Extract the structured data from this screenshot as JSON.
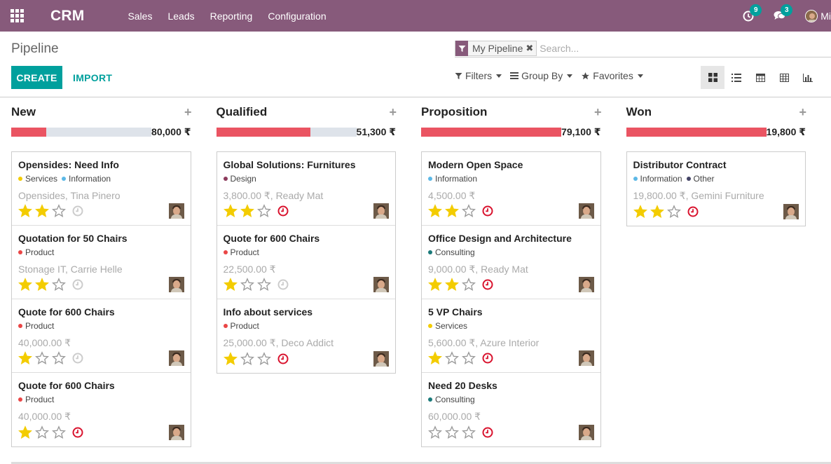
{
  "navbar": {
    "brand": "CRM",
    "menu": [
      "Sales",
      "Leads",
      "Reporting",
      "Configuration"
    ],
    "activity_count": "9",
    "message_count": "3",
    "user_name": "Mi"
  },
  "control_panel": {
    "title": "Pipeline",
    "create_label": "CREATE",
    "import_label": "IMPORT",
    "facet": "My Pipeline",
    "search_placeholder": "Search...",
    "filters_label": "Filters",
    "groupby_label": "Group By",
    "favorites_label": "Favorites"
  },
  "colors": {
    "brand": "#875a7b",
    "accent": "#00a09d",
    "progress": "#ea5462",
    "star": "#f3cc00",
    "overdue": "#d9132e"
  },
  "columns": [
    {
      "title": "New",
      "total": "80,000 ₹",
      "progress": 0.25,
      "cards": [
        {
          "title": "Opensides: Need Info",
          "tags": [
            {
              "name": "Services",
              "color": "#f3cc00"
            },
            {
              "name": "Information",
              "color": "#5cb8e6"
            }
          ],
          "sub": "Opensides, Tina Pinero",
          "stars": 2,
          "activity": "none"
        },
        {
          "title": "Quotation for 50 Chairs",
          "tags": [
            {
              "name": "Product",
              "color": "#ea4646"
            }
          ],
          "sub": "Stonage IT, Carrie Helle",
          "stars": 2,
          "activity": "none"
        },
        {
          "title": "Quote for 600 Chairs",
          "tags": [
            {
              "name": "Product",
              "color": "#ea4646"
            }
          ],
          "sub": "40,000.00 ₹",
          "stars": 1,
          "activity": "none"
        },
        {
          "title": "Quote for 600 Chairs",
          "tags": [
            {
              "name": "Product",
              "color": "#ea4646"
            }
          ],
          "sub": "40,000.00 ₹",
          "stars": 1,
          "activity": "overdue"
        }
      ]
    },
    {
      "title": "Qualified",
      "total": "51,300 ₹",
      "progress": 0.67,
      "cards": [
        {
          "title": "Global Solutions: Furnitures",
          "tags": [
            {
              "name": "Design",
              "color": "#8c3a5c"
            }
          ],
          "sub": "3,800.00 ₹, Ready Mat",
          "stars": 2,
          "activity": "overdue"
        },
        {
          "title": "Quote for 600 Chairs",
          "tags": [
            {
              "name": "Product",
              "color": "#ea4646"
            }
          ],
          "sub": "22,500.00 ₹",
          "stars": 1,
          "activity": "none"
        },
        {
          "title": "Info about services",
          "tags": [
            {
              "name": "Product",
              "color": "#ea4646"
            }
          ],
          "sub": "25,000.00 ₹, Deco Addict",
          "stars": 1,
          "activity": "overdue"
        }
      ]
    },
    {
      "title": "Proposition",
      "total": "79,100 ₹",
      "progress": 1.0,
      "cards": [
        {
          "title": "Modern Open Space",
          "tags": [
            {
              "name": "Information",
              "color": "#5cb8e6"
            }
          ],
          "sub": "4,500.00 ₹",
          "stars": 2,
          "activity": "overdue"
        },
        {
          "title": "Office Design and Architecture",
          "tags": [
            {
              "name": "Consulting",
              "color": "#1b7a7a"
            }
          ],
          "sub": "9,000.00 ₹, Ready Mat",
          "stars": 2,
          "activity": "overdue"
        },
        {
          "title": "5 VP Chairs",
          "tags": [
            {
              "name": "Services",
              "color": "#f3cc00"
            }
          ],
          "sub": "5,600.00 ₹, Azure Interior",
          "stars": 1,
          "activity": "overdue"
        },
        {
          "title": "Need 20 Desks",
          "tags": [
            {
              "name": "Consulting",
              "color": "#1b7a7a"
            }
          ],
          "sub": "60,000.00 ₹",
          "stars": 0,
          "activity": "overdue"
        }
      ]
    },
    {
      "title": "Won",
      "total": "19,800 ₹",
      "progress": 1.0,
      "cards": [
        {
          "title": "Distributor Contract",
          "tags": [
            {
              "name": "Information",
              "color": "#5cb8e6"
            },
            {
              "name": "Other",
              "color": "#444466"
            }
          ],
          "sub": "19,800.00 ₹, Gemini Furniture",
          "stars": 2,
          "activity": "overdue"
        }
      ]
    }
  ]
}
